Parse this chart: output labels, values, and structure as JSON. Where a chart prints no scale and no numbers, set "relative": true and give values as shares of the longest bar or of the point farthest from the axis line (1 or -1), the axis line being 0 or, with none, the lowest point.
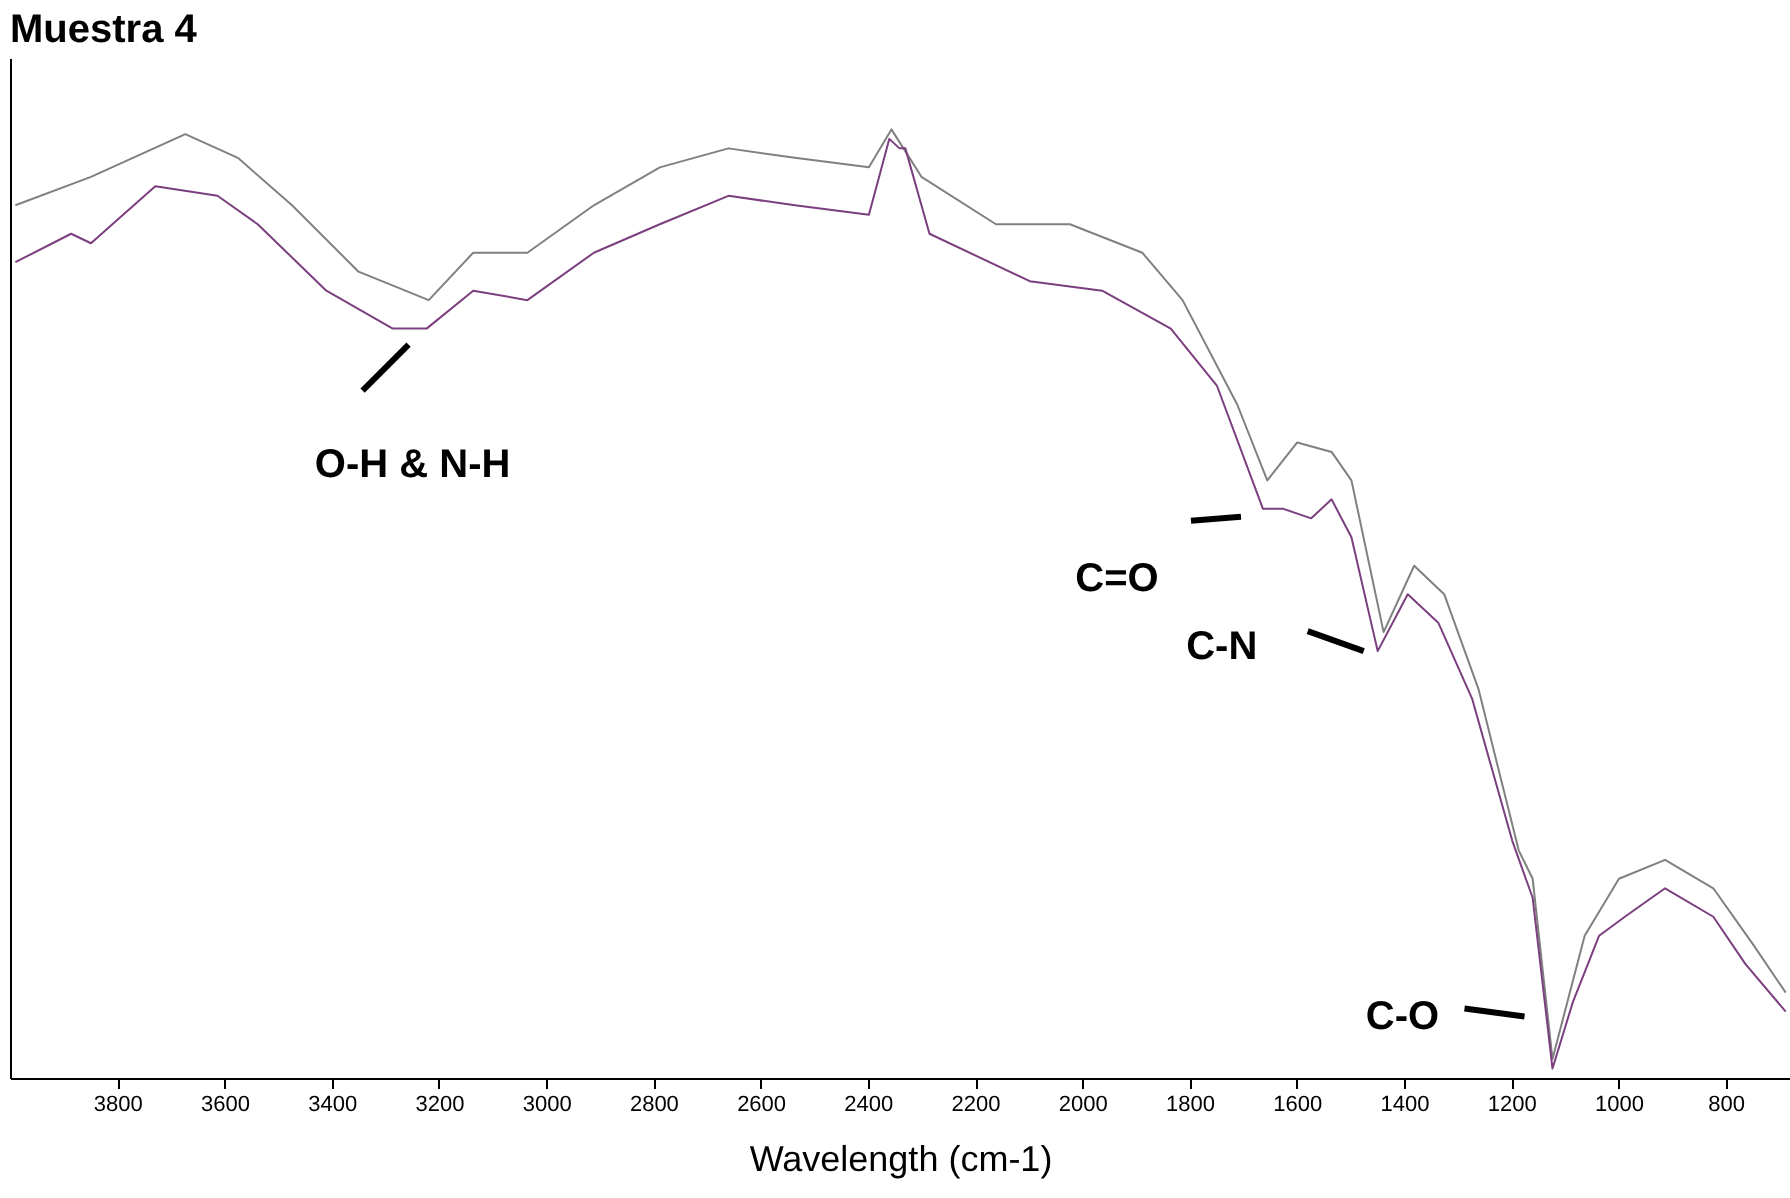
{
  "chart_data": {
    "type": "line",
    "title": "Muestra 4",
    "xlabel": "Wavelength (cm-1)",
    "relative": true,
    "xlim": [
      4000,
      680
    ],
    "xticks": [
      3800,
      3600,
      3400,
      3200,
      3000,
      2800,
      2600,
      2400,
      2200,
      2000,
      1800,
      1600,
      1400,
      1200,
      1000,
      800
    ],
    "series": [
      {
        "color": "#808080",
        "x": [
          3990,
          3849,
          3673,
          3575,
          3474,
          3350,
          3219,
          3136,
          3035,
          2911,
          2788,
          2660,
          2536,
          2398,
          2356,
          2300,
          2161,
          2023,
          1888,
          1813,
          1711,
          1655,
          1599,
          1535,
          1498,
          1438,
          1381,
          1325,
          1261,
          1186,
          1160,
          1123,
          1063,
          999,
          913,
          823,
          748,
          688
        ],
        "values": [
          0.92,
          0.95,
          0.995,
          0.97,
          0.92,
          0.85,
          0.82,
          0.87,
          0.87,
          0.92,
          0.96,
          0.98,
          0.97,
          0.96,
          1.0,
          0.95,
          0.9,
          0.9,
          0.87,
          0.82,
          0.71,
          0.63,
          0.67,
          0.66,
          0.63,
          0.47,
          0.54,
          0.51,
          0.41,
          0.24,
          0.21,
          0.02,
          0.15,
          0.21,
          0.23,
          0.2,
          0.14,
          0.09
        ]
      },
      {
        "color": "#7b3f7f",
        "x": [
          3990,
          3886,
          3849,
          3729,
          3613,
          3538,
          3410,
          3286,
          3223,
          3136,
          3035,
          2911,
          2788,
          2660,
          2536,
          2398,
          2360,
          2341,
          2330,
          2285,
          2098,
          1963,
          1835,
          1749,
          1663,
          1625,
          1573,
          1535,
          1498,
          1449,
          1393,
          1336,
          1273,
          1198,
          1160,
          1123,
          1085,
          1036,
          988,
          913,
          823,
          763,
          688
        ],
        "values": [
          0.86,
          0.89,
          0.88,
          0.94,
          0.93,
          0.9,
          0.83,
          0.79,
          0.79,
          0.83,
          0.82,
          0.87,
          0.9,
          0.93,
          0.92,
          0.91,
          0.99,
          0.98,
          0.98,
          0.89,
          0.84,
          0.83,
          0.79,
          0.73,
          0.6,
          0.6,
          0.59,
          0.61,
          0.57,
          0.45,
          0.51,
          0.48,
          0.4,
          0.25,
          0.19,
          0.01,
          0.08,
          0.15,
          0.17,
          0.2,
          0.17,
          0.12,
          0.07
        ]
      }
    ],
    "annotations": [
      {
        "text": "O-H & N-H",
        "x": 3223,
        "y": 0.79
      },
      {
        "text": "C=O",
        "x": 1663,
        "y": 0.6
      },
      {
        "text": "C-N",
        "x": 1449,
        "y": 0.45
      },
      {
        "text": "C-O",
        "x": 1123,
        "y": 0.01
      }
    ]
  }
}
